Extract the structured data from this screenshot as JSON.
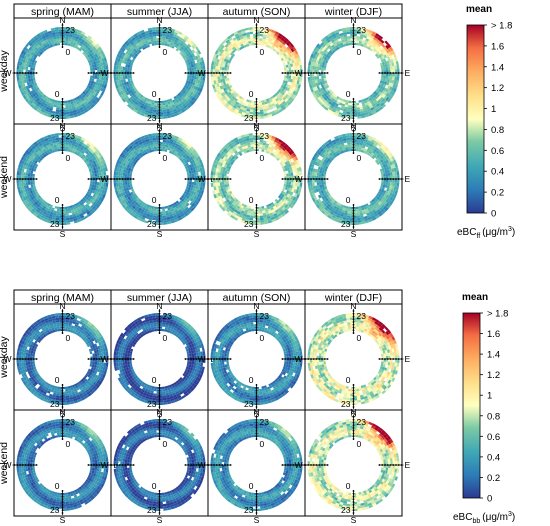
{
  "chart_data": [
    {
      "type": "heatmap",
      "plot": "polar clock plots of eBC by wind direction and hour of day",
      "col_titles": [
        "spring (MAM)",
        "summer (JJA)",
        "autumn (SON)",
        "winter (DJF)"
      ],
      "row_labels": [
        "weekday",
        "weekend"
      ],
      "hour_labels": {
        "top_inner": "0",
        "top_outer": "23",
        "bottom_inner": "0",
        "bottom_outer": "23"
      },
      "direction_labels": {
        "north": "N",
        "south": "S",
        "east": "E",
        "west": "W"
      },
      "colorbar": {
        "title": "mean",
        "ticks": [
          "0",
          "0.2",
          "0.4",
          "0.6",
          "0.8",
          "1",
          "1.2",
          "1.4",
          "1.6",
          "> 1.8"
        ],
        "tick_values": [
          0,
          0.2,
          0.4,
          0.6,
          0.8,
          1.0,
          1.2,
          1.4,
          1.6,
          1.8
        ],
        "range": [
          0,
          1.8
        ],
        "label_main": "eBC",
        "label_sub": "ff",
        "label_unit": "(μg/m",
        "label_sup": "3",
        "label_close": ")"
      },
      "panel_mean_levels": [
        [
          0.42,
          0.45,
          0.78,
          0.62
        ],
        [
          0.4,
          0.38,
          0.68,
          0.5
        ]
      ],
      "high_sector_direction": "NE",
      "high_sector_value": "> 1.8"
    },
    {
      "type": "heatmap",
      "plot": "polar clock plots of eBC by wind direction and hour of day",
      "col_titles": [
        "spring (MAM)",
        "summer (JJA)",
        "autumn (SON)",
        "winter (DJF)"
      ],
      "row_labels": [
        "weekday",
        "weekend"
      ],
      "hour_labels": {
        "top_inner": "0",
        "top_outer": "23",
        "bottom_inner": "0",
        "bottom_outer": "23"
      },
      "direction_labels": {
        "north": "N",
        "south": "S",
        "east": "E",
        "west": "W"
      },
      "colorbar": {
        "title": "mean",
        "ticks": [
          "0",
          "0.2",
          "0.4",
          "0.6",
          "0.8",
          "1",
          "1.2",
          "1.4",
          "1.6",
          "> 1.8"
        ],
        "tick_values": [
          0,
          0.2,
          0.4,
          0.6,
          0.8,
          1.0,
          1.2,
          1.4,
          1.6,
          1.8
        ],
        "range": [
          0,
          1.8
        ],
        "label_main": "eBC",
        "label_sub": "bb",
        "label_unit": "(μg/m",
        "label_sup": "3",
        "label_close": ")"
      },
      "panel_mean_levels": [
        [
          0.22,
          0.12,
          0.3,
          0.85
        ],
        [
          0.25,
          0.15,
          0.32,
          0.8
        ]
      ],
      "high_sector_direction": "NE",
      "high_sector_value": "> 1.8"
    }
  ]
}
